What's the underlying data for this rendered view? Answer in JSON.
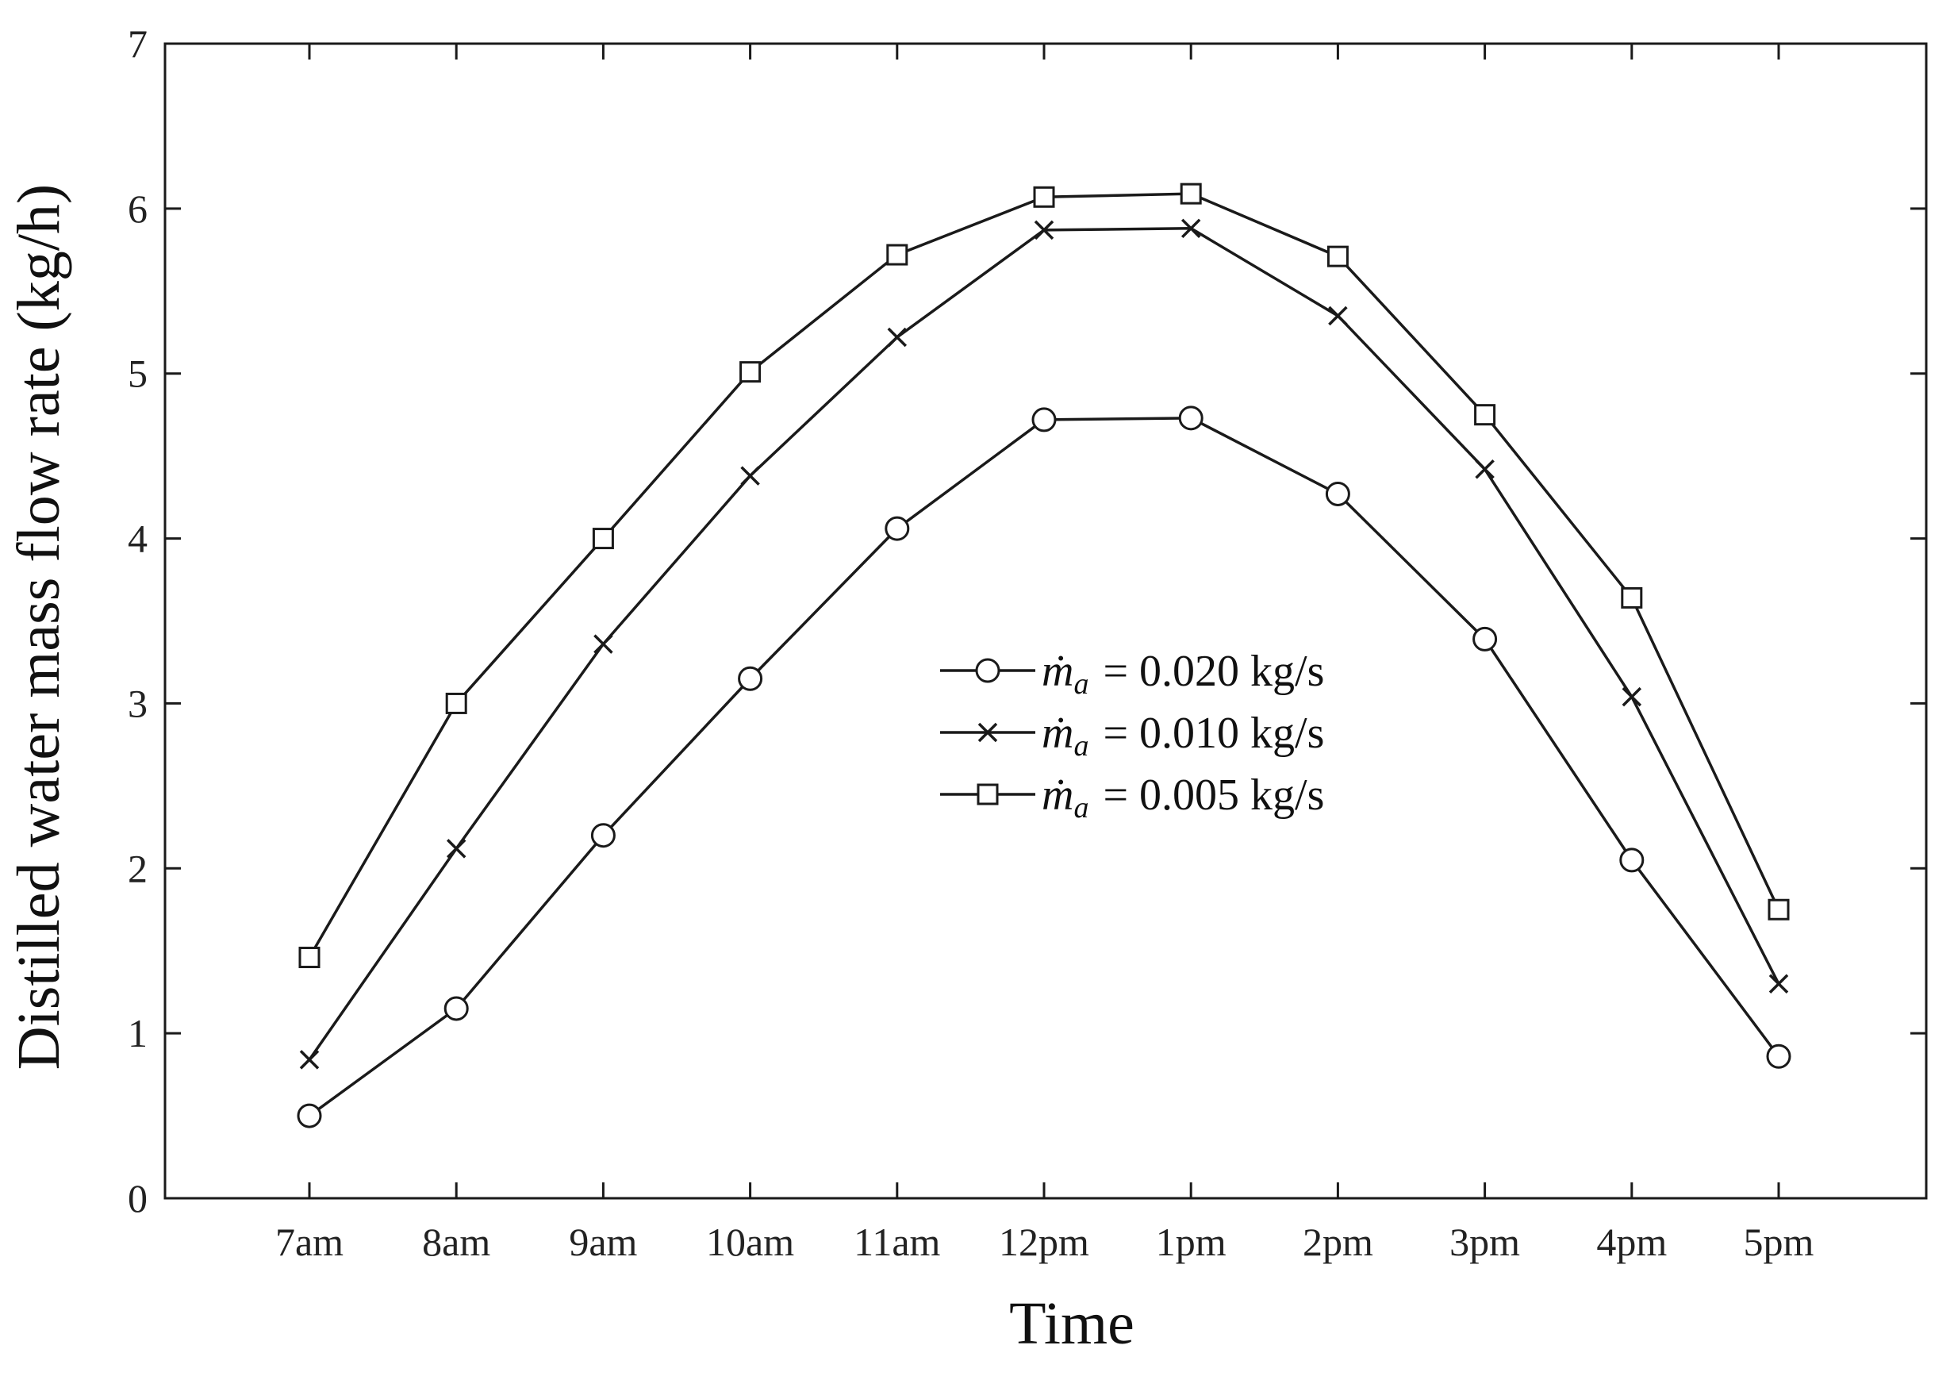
{
  "chart_data": {
    "type": "line",
    "xlabel": "Time",
    "ylabel": "Distilled water mass flow rate (kg/h)",
    "categories": [
      "7am",
      "8am",
      "9am",
      "10am",
      "11am",
      "12pm",
      "1pm",
      "2pm",
      "3pm",
      "4pm",
      "5pm"
    ],
    "ylim": [
      0,
      7
    ],
    "yticks": [
      "0",
      "1",
      "2",
      "3",
      "4",
      "5",
      "6",
      "7"
    ],
    "grid": false,
    "legend_position": "center",
    "series": [
      {
        "name": "ṁa = 0.020 kg/s",
        "legend_var": "ṁ",
        "legend_sub": "a",
        "legend_eq": "= 0.020 kg/s",
        "marker": "circle",
        "values": [
          0.5,
          1.15,
          2.2,
          3.15,
          4.06,
          4.72,
          4.73,
          4.27,
          3.39,
          2.05,
          0.86
        ]
      },
      {
        "name": "ṁa = 0.010 kg/s",
        "legend_var": "ṁ",
        "legend_sub": "a",
        "legend_eq": "= 0.010 kg/s",
        "marker": "x",
        "values": [
          0.84,
          2.12,
          3.36,
          4.38,
          5.22,
          5.87,
          5.88,
          5.35,
          4.42,
          3.04,
          1.3
        ]
      },
      {
        "name": "ṁa = 0.005 kg/s",
        "legend_var": "ṁ",
        "legend_sub": "a",
        "legend_eq": "= 0.005 kg/s",
        "marker": "square",
        "values": [
          1.46,
          3.0,
          4.0,
          5.01,
          5.72,
          6.07,
          6.09,
          5.71,
          4.75,
          3.64,
          1.75
        ]
      }
    ]
  }
}
